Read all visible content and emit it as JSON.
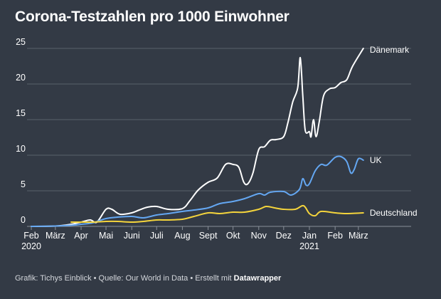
{
  "colors": {
    "background": "#333a45",
    "grid": "#5a616c",
    "daenemark": "#ffffff",
    "uk": "#64a7f2",
    "deutschland": "#f4d43c"
  },
  "footer": {
    "text": "Grafik: Tichys Einblick • Quelle: Our World in Data • Erstellt mit ",
    "brand": "Datawrapper"
  },
  "chart_data": {
    "type": "line",
    "title": "Corona-Testzahlen pro 1000 Einwohner",
    "xlabel": "",
    "ylabel": "",
    "ylim": [
      0,
      25
    ],
    "y_ticks": [
      0,
      5,
      10,
      15,
      20,
      25
    ],
    "x_range": [
      "2020-02-01",
      "2021-03-08"
    ],
    "x_ticks": [
      {
        "date": "2020-02-01",
        "label": "Feb",
        "sublabel": "2020"
      },
      {
        "date": "2020-03-01",
        "label": "März"
      },
      {
        "date": "2020-04-01",
        "label": "Apr"
      },
      {
        "date": "2020-05-01",
        "label": "Mai"
      },
      {
        "date": "2020-06-01",
        "label": "Juni"
      },
      {
        "date": "2020-07-01",
        "label": "Juli"
      },
      {
        "date": "2020-08-01",
        "label": "Aug"
      },
      {
        "date": "2020-09-01",
        "label": "Sept"
      },
      {
        "date": "2020-10-01",
        "label": "Okt"
      },
      {
        "date": "2020-11-01",
        "label": "Nov"
      },
      {
        "date": "2020-12-01",
        "label": "Dez"
      },
      {
        "date": "2021-01-01",
        "label": "Jan",
        "sublabel": "2021"
      },
      {
        "date": "2021-02-01",
        "label": "Feb"
      },
      {
        "date": "2021-03-01",
        "label": "März"
      }
    ],
    "grid": true,
    "legend": "labels at line ends",
    "series": [
      {
        "name": "Dänemark",
        "color": "#ffffff",
        "points": [
          [
            "2020-02-01",
            0
          ],
          [
            "2020-03-01",
            0.05
          ],
          [
            "2020-03-20",
            0.3
          ],
          [
            "2020-04-01",
            0.6
          ],
          [
            "2020-04-12",
            0.9
          ],
          [
            "2020-04-20",
            0.6
          ],
          [
            "2020-05-01",
            2.4
          ],
          [
            "2020-05-08",
            2.4
          ],
          [
            "2020-05-18",
            1.7
          ],
          [
            "2020-06-01",
            1.9
          ],
          [
            "2020-06-10",
            2.3
          ],
          [
            "2020-06-20",
            2.7
          ],
          [
            "2020-07-01",
            2.8
          ],
          [
            "2020-07-15",
            2.4
          ],
          [
            "2020-08-01",
            2.5
          ],
          [
            "2020-08-10",
            3.6
          ],
          [
            "2020-08-20",
            5.1
          ],
          [
            "2020-09-01",
            6.2
          ],
          [
            "2020-09-12",
            6.8
          ],
          [
            "2020-09-22",
            8.7
          ],
          [
            "2020-10-01",
            8.7
          ],
          [
            "2020-10-08",
            8.3
          ],
          [
            "2020-10-14",
            6.2
          ],
          [
            "2020-10-19",
            6.0
          ],
          [
            "2020-10-25",
            7.5
          ],
          [
            "2020-11-01",
            10.8
          ],
          [
            "2020-11-08",
            11.2
          ],
          [
            "2020-11-15",
            12.1
          ],
          [
            "2020-11-22",
            12.2
          ],
          [
            "2020-12-01",
            12.6
          ],
          [
            "2020-12-06",
            14.5
          ],
          [
            "2020-12-12",
            17.5
          ],
          [
            "2020-12-18",
            19.5
          ],
          [
            "2020-12-21",
            23.7
          ],
          [
            "2020-12-24",
            18.5
          ],
          [
            "2020-12-27",
            13.5
          ],
          [
            "2021-01-01",
            13.3
          ],
          [
            "2021-01-03",
            12.6
          ],
          [
            "2021-01-06",
            15.0
          ],
          [
            "2021-01-09",
            12.6
          ],
          [
            "2021-01-13",
            14.8
          ],
          [
            "2021-01-18",
            18.3
          ],
          [
            "2021-01-25",
            19.3
          ],
          [
            "2021-02-01",
            19.5
          ],
          [
            "2021-02-08",
            20.2
          ],
          [
            "2021-02-15",
            20.6
          ],
          [
            "2021-02-22",
            22.5
          ],
          [
            "2021-03-07",
            25.0
          ]
        ]
      },
      {
        "name": "UK",
        "color": "#64a7f2",
        "points": [
          [
            "2020-02-01",
            0
          ],
          [
            "2020-03-01",
            0.05
          ],
          [
            "2020-03-25",
            0.2
          ],
          [
            "2020-04-01",
            0.3
          ],
          [
            "2020-04-15",
            0.5
          ],
          [
            "2020-05-01",
            1.1
          ],
          [
            "2020-05-15",
            1.3
          ],
          [
            "2020-06-01",
            1.4
          ],
          [
            "2020-06-15",
            1.2
          ],
          [
            "2020-07-01",
            1.6
          ],
          [
            "2020-07-15",
            1.8
          ],
          [
            "2020-08-01",
            2.1
          ],
          [
            "2020-08-15",
            2.3
          ],
          [
            "2020-09-01",
            2.6
          ],
          [
            "2020-09-15",
            3.2
          ],
          [
            "2020-10-01",
            3.5
          ],
          [
            "2020-10-15",
            3.9
          ],
          [
            "2020-11-01",
            4.6
          ],
          [
            "2020-11-08",
            4.4
          ],
          [
            "2020-11-15",
            4.8
          ],
          [
            "2020-12-01",
            4.9
          ],
          [
            "2020-12-10",
            4.4
          ],
          [
            "2020-12-20",
            5.2
          ],
          [
            "2020-12-24",
            6.7
          ],
          [
            "2020-12-28",
            5.8
          ],
          [
            "2021-01-01",
            6.0
          ],
          [
            "2021-01-08",
            7.8
          ],
          [
            "2021-01-15",
            8.7
          ],
          [
            "2021-01-22",
            8.6
          ],
          [
            "2021-02-01",
            9.7
          ],
          [
            "2021-02-08",
            9.8
          ],
          [
            "2021-02-15",
            9.1
          ],
          [
            "2021-02-20",
            7.5
          ],
          [
            "2021-02-24",
            8.0
          ],
          [
            "2021-03-01",
            9.5
          ],
          [
            "2021-03-07",
            9.3
          ]
        ]
      },
      {
        "name": "Deutschland",
        "color": "#f4d43c",
        "points": [
          [
            "2020-03-20",
            0.6
          ],
          [
            "2020-04-01",
            0.6
          ],
          [
            "2020-04-15",
            0.6
          ],
          [
            "2020-05-01",
            0.7
          ],
          [
            "2020-05-15",
            0.7
          ],
          [
            "2020-06-01",
            0.6
          ],
          [
            "2020-06-15",
            0.7
          ],
          [
            "2020-07-01",
            0.9
          ],
          [
            "2020-07-15",
            0.9
          ],
          [
            "2020-08-01",
            1.0
          ],
          [
            "2020-08-15",
            1.4
          ],
          [
            "2020-09-01",
            1.9
          ],
          [
            "2020-09-15",
            1.8
          ],
          [
            "2020-10-01",
            2.0
          ],
          [
            "2020-10-15",
            2.0
          ],
          [
            "2020-11-01",
            2.4
          ],
          [
            "2020-11-10",
            2.8
          ],
          [
            "2020-11-20",
            2.6
          ],
          [
            "2020-12-01",
            2.4
          ],
          [
            "2020-12-15",
            2.4
          ],
          [
            "2020-12-25",
            2.9
          ],
          [
            "2021-01-01",
            1.8
          ],
          [
            "2021-01-08",
            1.5
          ],
          [
            "2021-01-15",
            2.1
          ],
          [
            "2021-02-01",
            1.9
          ],
          [
            "2021-02-15",
            1.8
          ],
          [
            "2021-03-07",
            1.9
          ]
        ]
      }
    ]
  }
}
